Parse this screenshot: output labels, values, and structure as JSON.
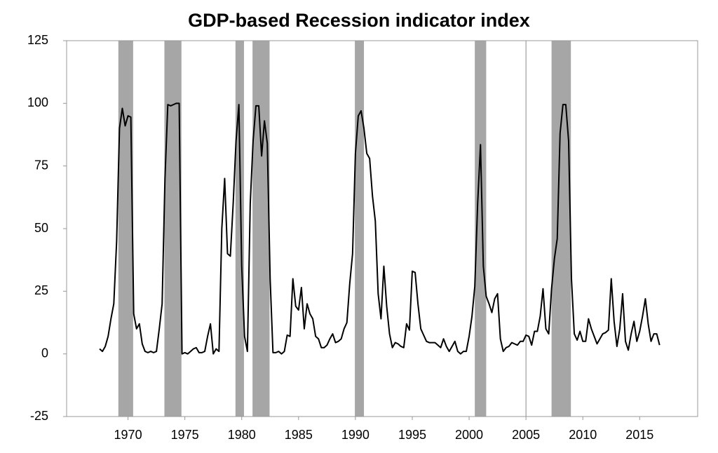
{
  "chart_data": {
    "type": "line",
    "title": "GDP-based Recession indicator index",
    "color": "#000000",
    "band_color": "#a6a6a6",
    "x": [
      1967.5,
      1967.75,
      1968,
      1968.25,
      1968.5,
      1968.75,
      1969,
      1969.25,
      1969.5,
      1969.75,
      1970,
      1970.25,
      1970.5,
      1970.75,
      1971,
      1971.25,
      1971.5,
      1971.75,
      1972,
      1972.25,
      1972.5,
      1972.75,
      1973,
      1973.25,
      1973.5,
      1973.75,
      1974,
      1974.25,
      1974.5,
      1974.75,
      1975,
      1975.25,
      1975.5,
      1975.75,
      1976,
      1976.25,
      1976.5,
      1976.75,
      1977,
      1977.25,
      1977.5,
      1977.75,
      1978,
      1978.25,
      1978.5,
      1978.75,
      1979,
      1979.25,
      1979.5,
      1979.75,
      1980,
      1980.25,
      1980.5,
      1980.75,
      1981,
      1981.25,
      1981.5,
      1981.75,
      1982,
      1982.25,
      1982.5,
      1982.75,
      1983,
      1983.25,
      1983.5,
      1983.75,
      1984,
      1984.25,
      1984.5,
      1984.75,
      1985,
      1985.25,
      1985.5,
      1985.75,
      1986,
      1986.25,
      1986.5,
      1986.75,
      1987,
      1987.25,
      1987.5,
      1987.75,
      1988,
      1988.25,
      1988.5,
      1988.75,
      1989,
      1989.25,
      1989.5,
      1989.75,
      1990,
      1990.25,
      1990.5,
      1990.75,
      1991,
      1991.25,
      1991.5,
      1991.75,
      1992,
      1992.25,
      1992.5,
      1992.75,
      1993,
      1993.25,
      1993.5,
      1993.75,
      1994,
      1994.25,
      1994.5,
      1994.75,
      1995,
      1995.25,
      1995.5,
      1995.75,
      1996,
      1996.25,
      1996.5,
      1996.75,
      1997,
      1997.25,
      1997.5,
      1997.75,
      1998,
      1998.25,
      1998.5,
      1998.75,
      1999,
      1999.25,
      1999.5,
      1999.75,
      2000,
      2000.25,
      2000.5,
      2000.75,
      2001,
      2001.25,
      2001.5,
      2001.75,
      2002,
      2002.25,
      2002.5,
      2002.75,
      2003,
      2003.25,
      2003.5,
      2003.75,
      2004,
      2004.25,
      2004.5,
      2004.75,
      2005,
      2005.25,
      2005.5,
      2005.75,
      2006,
      2006.25,
      2006.5,
      2006.75,
      2007,
      2007.25,
      2007.5,
      2007.75,
      2008,
      2008.25,
      2008.5,
      2008.75,
      2009,
      2009.25,
      2009.5,
      2009.75,
      2010,
      2010.25,
      2010.5,
      2010.75,
      2011,
      2011.25,
      2011.5,
      2011.75,
      2012,
      2012.25,
      2012.5,
      2012.75,
      2013,
      2013.25,
      2013.5,
      2013.75,
      2014,
      2014.25,
      2014.5,
      2014.75,
      2015,
      2015.25,
      2015.5,
      2015.75,
      2016,
      2016.25,
      2016.5,
      2016.75
    ],
    "values": [
      2,
      1,
      3,
      7,
      14,
      20,
      45,
      90,
      98,
      91,
      95,
      94.5,
      16,
      10,
      12,
      4,
      1,
      0.5,
      1,
      0.5,
      1,
      10,
      20,
      70,
      99.5,
      99,
      99.5,
      100,
      100,
      0,
      0.5,
      0,
      1,
      2,
      2.5,
      0.5,
      0.5,
      1,
      7,
      12,
      0,
      2,
      1,
      50,
      70,
      40,
      39,
      60,
      85,
      99.5,
      35,
      7,
      1,
      60,
      85,
      99,
      99,
      79,
      93,
      84,
      30,
      0.5,
      0.5,
      1,
      0,
      1,
      7.5,
      7,
      30,
      19,
      17.5,
      26.5,
      10,
      20,
      16,
      14,
      7,
      6,
      2.5,
      2.5,
      3.5,
      6,
      8,
      4.5,
      5,
      6,
      10,
      12.5,
      28,
      40,
      80,
      95,
      97,
      90,
      80,
      78,
      63,
      53,
      24,
      14,
      35,
      19,
      8,
      2.5,
      4.5,
      4,
      3,
      2.5,
      12,
      9.5,
      33,
      32.5,
      20,
      10,
      7.5,
      5,
      4.5,
      4.5,
      4.5,
      3.5,
      2.5,
      6,
      3,
      1,
      3,
      5,
      1,
      0,
      1,
      1,
      7,
      15,
      27,
      60,
      83.5,
      35,
      23,
      20,
      16.5,
      22,
      24,
      6,
      1,
      2.5,
      3,
      4.5,
      4,
      3.5,
      5,
      5,
      7.5,
      7,
      3.5,
      9,
      9,
      15,
      26,
      10,
      8,
      26,
      38,
      46,
      88,
      99.5,
      99.5,
      85,
      30,
      8,
      5.5,
      9,
      5,
      5,
      14,
      10,
      7,
      4,
      6,
      8,
      8.5,
      9.5,
      30,
      13,
      3,
      10,
      24,
      5,
      1.5,
      8,
      13,
      5,
      9,
      15,
      22,
      12,
      5,
      8,
      8,
      3.5
    ],
    "recessions": [
      [
        1969.15,
        1970.45
      ],
      [
        1973.2,
        1974.7
      ],
      [
        1979.45,
        1980.2
      ],
      [
        1980.95,
        1982.45
      ],
      [
        1989.95,
        1990.75
      ],
      [
        2000.5,
        2001.5
      ],
      [
        2007.25,
        2008.95
      ]
    ],
    "vline": 2005,
    "xlim": [
      1964.6,
      2020.1
    ],
    "xticks": [
      1970,
      1975,
      1980,
      1985,
      1990,
      1995,
      2000,
      2005,
      2010,
      2015
    ],
    "ylim": [
      -25,
      125
    ],
    "yticks": [
      -25,
      0,
      25,
      50,
      75,
      100,
      125
    ]
  }
}
